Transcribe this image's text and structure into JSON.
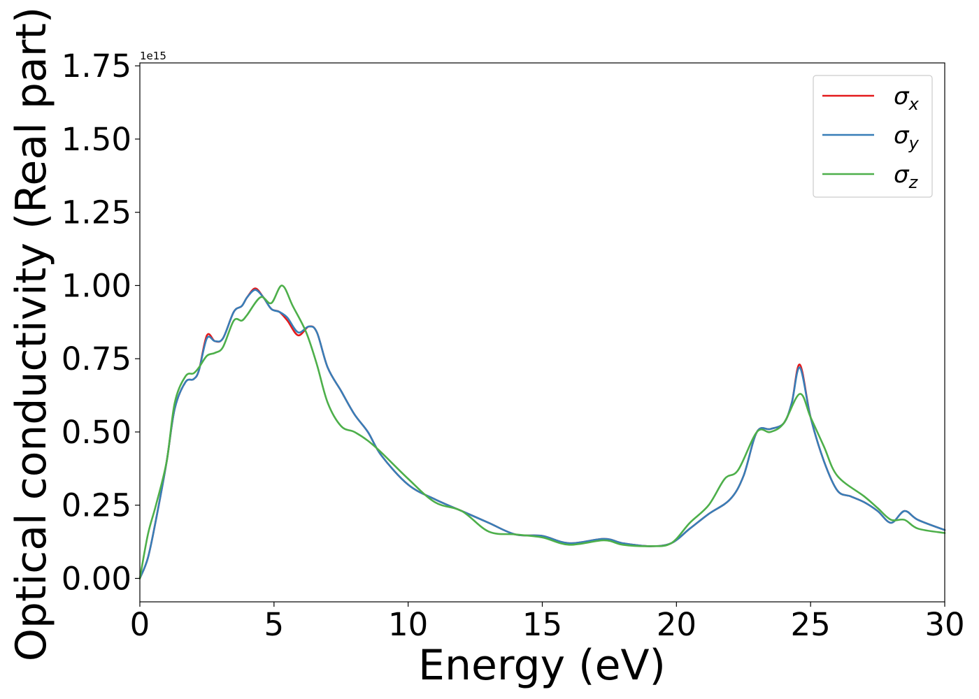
{
  "chart_data": {
    "type": "line",
    "xlabel": "Energy (eV)",
    "ylabel": "Optical conductivity (Real part)",
    "y_offset_label": "1e15",
    "xlim": [
      0,
      30
    ],
    "ylim": [
      -0.08,
      1.76
    ],
    "x_ticks": [
      0,
      5,
      10,
      15,
      20,
      25,
      30
    ],
    "x_tick_labels": [
      "0",
      "5",
      "10",
      "15",
      "20",
      "25",
      "30"
    ],
    "y_ticks": [
      0.0,
      0.25,
      0.5,
      0.75,
      1.0,
      1.25,
      1.5,
      1.75
    ],
    "y_tick_labels": [
      "0.00",
      "0.25",
      "0.50",
      "0.75",
      "1.00",
      "1.25",
      "1.50",
      "1.75"
    ],
    "grid": false,
    "legend_position": "top-right",
    "series": [
      {
        "name": "σx",
        "symbol": "σ",
        "subscript": "x",
        "color": "#e41a1c",
        "x": [
          0,
          0.3,
          0.6,
          1.0,
          1.3,
          1.7,
          2.0,
          2.2,
          2.5,
          2.8,
          3.1,
          3.5,
          3.8,
          4.0,
          4.3,
          4.6,
          4.9,
          5.2,
          5.5,
          5.9,
          6.3,
          6.6,
          7.0,
          7.5,
          8.0,
          8.5,
          9.0,
          10.0,
          11.0,
          12.0,
          13.0,
          14.0,
          15.0,
          16.0,
          17.3,
          18.0,
          19.0,
          19.8,
          20.5,
          21.2,
          22.0,
          22.5,
          23.0,
          23.5,
          24.0,
          24.3,
          24.6,
          25.0,
          25.5,
          26.0,
          26.5,
          27.0,
          27.5,
          28.0,
          28.5,
          29.0,
          30.0
        ],
        "y": [
          0.0,
          0.07,
          0.2,
          0.4,
          0.58,
          0.67,
          0.68,
          0.71,
          0.83,
          0.81,
          0.82,
          0.91,
          0.93,
          0.96,
          0.99,
          0.96,
          0.92,
          0.91,
          0.88,
          0.83,
          0.86,
          0.84,
          0.72,
          0.64,
          0.56,
          0.5,
          0.42,
          0.32,
          0.27,
          0.23,
          0.19,
          0.15,
          0.145,
          0.12,
          0.135,
          0.12,
          0.11,
          0.12,
          0.17,
          0.22,
          0.27,
          0.35,
          0.5,
          0.51,
          0.53,
          0.6,
          0.73,
          0.55,
          0.4,
          0.3,
          0.28,
          0.26,
          0.23,
          0.19,
          0.23,
          0.2,
          0.165
        ]
      },
      {
        "name": "σy",
        "symbol": "σ",
        "subscript": "y",
        "color": "#377eb8",
        "x": [
          0,
          0.3,
          0.6,
          1.0,
          1.3,
          1.7,
          2.0,
          2.2,
          2.5,
          2.8,
          3.1,
          3.5,
          3.8,
          4.0,
          4.3,
          4.6,
          4.9,
          5.2,
          5.5,
          5.9,
          6.3,
          6.6,
          7.0,
          7.5,
          8.0,
          8.5,
          9.0,
          10.0,
          11.0,
          12.0,
          13.0,
          14.0,
          15.0,
          16.0,
          17.3,
          18.0,
          19.0,
          19.8,
          20.5,
          21.2,
          22.0,
          22.5,
          23.0,
          23.5,
          24.0,
          24.3,
          24.6,
          25.0,
          25.5,
          26.0,
          26.5,
          27.0,
          27.5,
          28.0,
          28.5,
          29.0,
          30.0
        ],
        "y": [
          0.0,
          0.07,
          0.2,
          0.4,
          0.58,
          0.67,
          0.68,
          0.71,
          0.82,
          0.81,
          0.82,
          0.91,
          0.93,
          0.96,
          0.985,
          0.96,
          0.92,
          0.91,
          0.89,
          0.84,
          0.86,
          0.84,
          0.72,
          0.64,
          0.56,
          0.5,
          0.42,
          0.32,
          0.27,
          0.23,
          0.19,
          0.15,
          0.145,
          0.12,
          0.135,
          0.12,
          0.11,
          0.12,
          0.17,
          0.22,
          0.27,
          0.35,
          0.5,
          0.51,
          0.53,
          0.6,
          0.72,
          0.55,
          0.4,
          0.3,
          0.28,
          0.26,
          0.23,
          0.19,
          0.23,
          0.2,
          0.165
        ]
      },
      {
        "name": "σz",
        "symbol": "σ",
        "subscript": "z",
        "color": "#4daf4a",
        "x": [
          0,
          0.3,
          0.6,
          1.0,
          1.3,
          1.7,
          2.0,
          2.2,
          2.5,
          2.8,
          3.1,
          3.5,
          3.8,
          4.0,
          4.5,
          4.9,
          5.3,
          5.7,
          6.2,
          6.6,
          7.0,
          7.5,
          8.0,
          8.5,
          9.0,
          10.0,
          11.0,
          12.0,
          13.0,
          14.0,
          15.0,
          16.0,
          17.3,
          18.0,
          19.0,
          19.8,
          20.5,
          21.2,
          21.8,
          22.3,
          23.0,
          23.5,
          24.0,
          24.6,
          25.0,
          25.5,
          26.0,
          27.0,
          27.5,
          28.0,
          28.5,
          29.0,
          30.0
        ],
        "y": [
          0.0,
          0.15,
          0.25,
          0.4,
          0.6,
          0.69,
          0.7,
          0.72,
          0.76,
          0.77,
          0.79,
          0.88,
          0.88,
          0.9,
          0.96,
          0.94,
          1.0,
          0.93,
          0.84,
          0.73,
          0.6,
          0.52,
          0.5,
          0.47,
          0.43,
          0.34,
          0.26,
          0.23,
          0.16,
          0.15,
          0.14,
          0.115,
          0.13,
          0.115,
          0.11,
          0.12,
          0.19,
          0.25,
          0.34,
          0.37,
          0.5,
          0.5,
          0.53,
          0.63,
          0.55,
          0.45,
          0.35,
          0.28,
          0.24,
          0.2,
          0.2,
          0.17,
          0.155
        ]
      }
    ]
  }
}
